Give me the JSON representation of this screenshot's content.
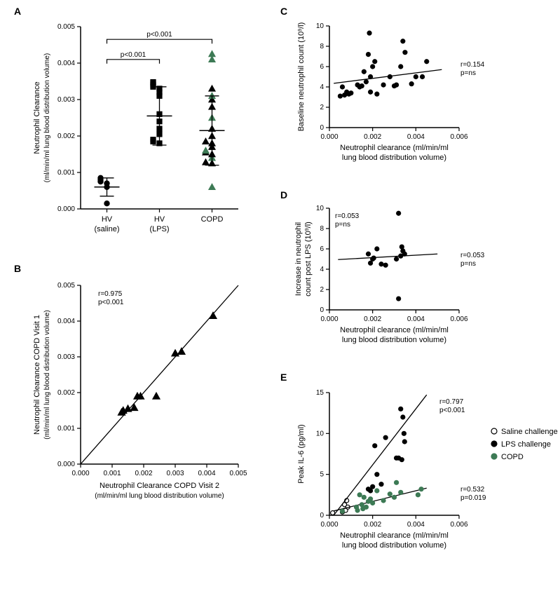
{
  "colors": {
    "background": "#ffffff",
    "axis": "#000000",
    "black": "#000000",
    "copd_green": "#3d7a55",
    "white": "#ffffff"
  },
  "typography": {
    "panel_label_fontsize": 14,
    "axis_label_fontsize": 11,
    "tick_fontsize": 10,
    "stat_fontsize": 10,
    "legend_fontsize": 11
  },
  "panelA": {
    "label": "A",
    "type": "dot-column",
    "ylabel_line1": "Neutrophil Clearance",
    "ylabel_line2": "(ml/min/ml lung blood distribution volume)",
    "ylim": [
      0,
      0.005
    ],
    "ytick_step": 0.001,
    "groups": [
      {
        "name": "HV_saline",
        "x_label1": "HV",
        "x_label2": "(saline)",
        "marker": "circle",
        "color": "#000000",
        "values": [
          0.00015,
          0.0007,
          0.0006,
          0.00075,
          0.0008,
          0.00085
        ],
        "mean": 0.0006,
        "sd": 0.00025
      },
      {
        "name": "HV_LPS",
        "x_label1": "HV",
        "x_label2": "(LPS)",
        "marker": "square",
        "color": "#000000",
        "values": [
          0.0018,
          0.00185,
          0.0019,
          0.00205,
          0.0022,
          0.0024,
          0.0026,
          0.0031,
          0.0032,
          0.0033,
          0.00335,
          0.0034,
          0.00345,
          0.00348
        ],
        "mean": 0.00255,
        "sd": 0.0008
      },
      {
        "name": "COPD",
        "x_label1": "COPD",
        "x_label2": "",
        "marker": "triangle",
        "colors": [
          "#3d7a55",
          "#000000",
          "#000000",
          "#3d7a55",
          "#000000",
          "#000000",
          "#3d7a55",
          "#000000",
          "#000000",
          "#000000",
          "#000000",
          "#000000",
          "#3d7a55",
          "#000000",
          "#000000",
          "#3d7a55",
          "#000000",
          "#3d7a55",
          "#3d7a55"
        ],
        "values": [
          0.0006,
          0.00125,
          0.00128,
          0.0014,
          0.0015,
          0.00155,
          0.0016,
          0.0017,
          0.0018,
          0.00185,
          0.002,
          0.0022,
          0.0025,
          0.0028,
          0.003,
          0.0031,
          0.0033,
          0.0041,
          0.00425
        ],
        "mean": 0.00215,
        "sd": 0.00095
      }
    ],
    "comparisons": [
      {
        "from": 0,
        "to": 1,
        "label": "p<0.001",
        "y": 0.0041
      },
      {
        "from": 0,
        "to": 2,
        "label": "p<0.001",
        "y": 0.00465
      }
    ]
  },
  "panelB": {
    "label": "B",
    "type": "scatter-line",
    "xlabel_line1": "Neutrophil Clearance COPD Visit 2",
    "xlabel_line2": "(ml/min/ml lung blood distribution volume)",
    "ylabel_line1": "Neutrophil Clearance COPD Visit 1",
    "ylabel_line2": "(ml/min/ml lung blood distribution volume)",
    "xlim": [
      0,
      0.005
    ],
    "xtick_step": 0.001,
    "ylim": [
      0,
      0.005
    ],
    "ytick_step": 0.001,
    "marker": "triangle",
    "color": "#000000",
    "points": [
      [
        0.0013,
        0.00145
      ],
      [
        0.00135,
        0.0015
      ],
      [
        0.0015,
        0.00155
      ],
      [
        0.0017,
        0.00158
      ],
      [
        0.0018,
        0.0019
      ],
      [
        0.0019,
        0.0019
      ],
      [
        0.0024,
        0.0019
      ],
      [
        0.003,
        0.0031
      ],
      [
        0.0032,
        0.00315
      ],
      [
        0.0042,
        0.00415
      ]
    ],
    "fit": {
      "slope": 1.0,
      "intercept": 0.0
    },
    "stat_lines": [
      "r=0.975",
      "p<0.001"
    ]
  },
  "panelC": {
    "label": "C",
    "type": "scatter-line",
    "xlabel_line1": "Neutrophil clearance (ml/min/ml",
    "xlabel_line2": "lung blood distribution volume)",
    "ylabel_line1": "Baseline neutrophil count (10",
    "ylabel_sup": "9",
    "ylabel_line1b": "/l)",
    "xlim": [
      0,
      0.006
    ],
    "xtick_step": 0.002,
    "ylim": [
      0,
      10
    ],
    "ytick_step": 2,
    "marker": "circle",
    "color": "#000000",
    "points": [
      [
        0.0005,
        3.1
      ],
      [
        0.0006,
        4.0
      ],
      [
        0.0007,
        3.2
      ],
      [
        0.0008,
        3.5
      ],
      [
        0.0009,
        3.3
      ],
      [
        0.001,
        3.4
      ],
      [
        0.0013,
        4.2
      ],
      [
        0.0014,
        4.0
      ],
      [
        0.0015,
        4.1
      ],
      [
        0.0016,
        5.5
      ],
      [
        0.0017,
        4.5
      ],
      [
        0.0018,
        7.2
      ],
      [
        0.00185,
        9.3
      ],
      [
        0.0019,
        5.0
      ],
      [
        0.0019,
        3.5
      ],
      [
        0.002,
        6.0
      ],
      [
        0.0021,
        6.5
      ],
      [
        0.0022,
        3.3
      ],
      [
        0.0025,
        4.2
      ],
      [
        0.0028,
        5.0
      ],
      [
        0.003,
        4.1
      ],
      [
        0.0031,
        4.2
      ],
      [
        0.0033,
        6.0
      ],
      [
        0.0034,
        8.5
      ],
      [
        0.0035,
        7.4
      ],
      [
        0.0038,
        4.3
      ],
      [
        0.004,
        5.0
      ],
      [
        0.0043,
        5.0
      ],
      [
        0.0045,
        6.5
      ]
    ],
    "fit": {
      "slope": 270,
      "intercept": 4.3
    },
    "stat_lines": [
      "r=0.154",
      "p=ns"
    ]
  },
  "panelD": {
    "label": "D",
    "type": "scatter-line",
    "xlabel_line1": "Neutrophil clearance (ml/min/ml",
    "xlabel_line2": "lung blood distribution volume)",
    "ylabel_line1": "Increase in neutrophil",
    "ylabel_line2": "count post LPS (10",
    "ylabel_sup": "9",
    "ylabel_line2b": "/l)",
    "xlim": [
      0,
      0.006
    ],
    "xtick_step": 0.002,
    "ylim": [
      0,
      10
    ],
    "ytick_step": 2,
    "marker": "circle",
    "color": "#000000",
    "points": [
      [
        0.0018,
        5.5
      ],
      [
        0.0019,
        4.6
      ],
      [
        0.002,
        5.0
      ],
      [
        0.00205,
        5.1
      ],
      [
        0.0022,
        6.0
      ],
      [
        0.0024,
        4.5
      ],
      [
        0.0026,
        4.4
      ],
      [
        0.0031,
        5.0
      ],
      [
        0.0032,
        9.5
      ],
      [
        0.0032,
        1.1
      ],
      [
        0.0033,
        5.3
      ],
      [
        0.00335,
        6.2
      ],
      [
        0.0034,
        5.8
      ],
      [
        0.00348,
        5.5
      ]
    ],
    "fit": {
      "slope": 120,
      "intercept": 4.9
    },
    "stat_lines_left": [
      "r=0.053",
      "p=ns"
    ],
    "stat_lines_right": [
      "r=0.053",
      "p=ns"
    ]
  },
  "panelE": {
    "label": "E",
    "type": "scatter-multi",
    "xlabel_line1": "Neutrophil clearance (ml/min/ml",
    "xlabel_line2": "lung blood distribution volume)",
    "ylabel": "Peak IL-6 (pg/ml)",
    "xlim": [
      0,
      0.006
    ],
    "xtick_step": 0.002,
    "ylim": [
      0,
      15
    ],
    "ytick_step": 5,
    "series": [
      {
        "name": "Saline challenge",
        "marker": "circle",
        "fill": "#ffffff",
        "stroke": "#000000",
        "points": [
          [
            0.00015,
            0.3
          ],
          [
            0.0006,
            0.4
          ],
          [
            0.0007,
            1.3
          ],
          [
            0.00075,
            0.6
          ],
          [
            0.0008,
            1.8
          ],
          [
            0.00085,
            1.0
          ]
        ]
      },
      {
        "name": "LPS challenge",
        "marker": "circle",
        "fill": "#000000",
        "stroke": "#000000",
        "points": [
          [
            0.0018,
            3.2
          ],
          [
            0.0019,
            3.0
          ],
          [
            0.002,
            3.5
          ],
          [
            0.0021,
            8.5
          ],
          [
            0.0022,
            5.0
          ],
          [
            0.0024,
            3.8
          ],
          [
            0.0026,
            9.5
          ],
          [
            0.0031,
            7.0
          ],
          [
            0.0032,
            7.0
          ],
          [
            0.0033,
            13.0
          ],
          [
            0.00335,
            6.8
          ],
          [
            0.0034,
            12.0
          ],
          [
            0.00345,
            10.0
          ],
          [
            0.00348,
            9.0
          ]
        ],
        "fit": {
          "slope": 3450,
          "intercept": -0.8
        },
        "stat_lines": [
          "r=0.797",
          "p<0.001"
        ]
      },
      {
        "name": "COPD",
        "marker": "circle",
        "fill": "#3d7a55",
        "stroke": "#3d7a55",
        "points": [
          [
            0.0006,
            0.5
          ],
          [
            0.00125,
            1.0
          ],
          [
            0.0013,
            0.6
          ],
          [
            0.0014,
            2.5
          ],
          [
            0.0015,
            1.3
          ],
          [
            0.00155,
            0.8
          ],
          [
            0.0016,
            2.2
          ],
          [
            0.0017,
            1.0
          ],
          [
            0.0018,
            1.7
          ],
          [
            0.0019,
            2.0
          ],
          [
            0.002,
            1.5
          ],
          [
            0.0022,
            3.0
          ],
          [
            0.0025,
            1.8
          ],
          [
            0.0028,
            2.6
          ],
          [
            0.003,
            2.2
          ],
          [
            0.0031,
            4.0
          ],
          [
            0.0033,
            2.8
          ],
          [
            0.0041,
            2.5
          ],
          [
            0.00425,
            3.2
          ]
        ],
        "fit": {
          "slope": 650,
          "intercept": 0.4
        },
        "stat_lines": [
          "r=0.532",
          "p=0.019"
        ]
      }
    ],
    "legend": [
      {
        "label": "Saline challenge",
        "fill": "#ffffff",
        "stroke": "#000000"
      },
      {
        "label": "LPS challenge",
        "fill": "#000000",
        "stroke": "#000000"
      },
      {
        "label": "COPD",
        "fill": "#3d7a55",
        "stroke": "#3d7a55"
      }
    ]
  }
}
